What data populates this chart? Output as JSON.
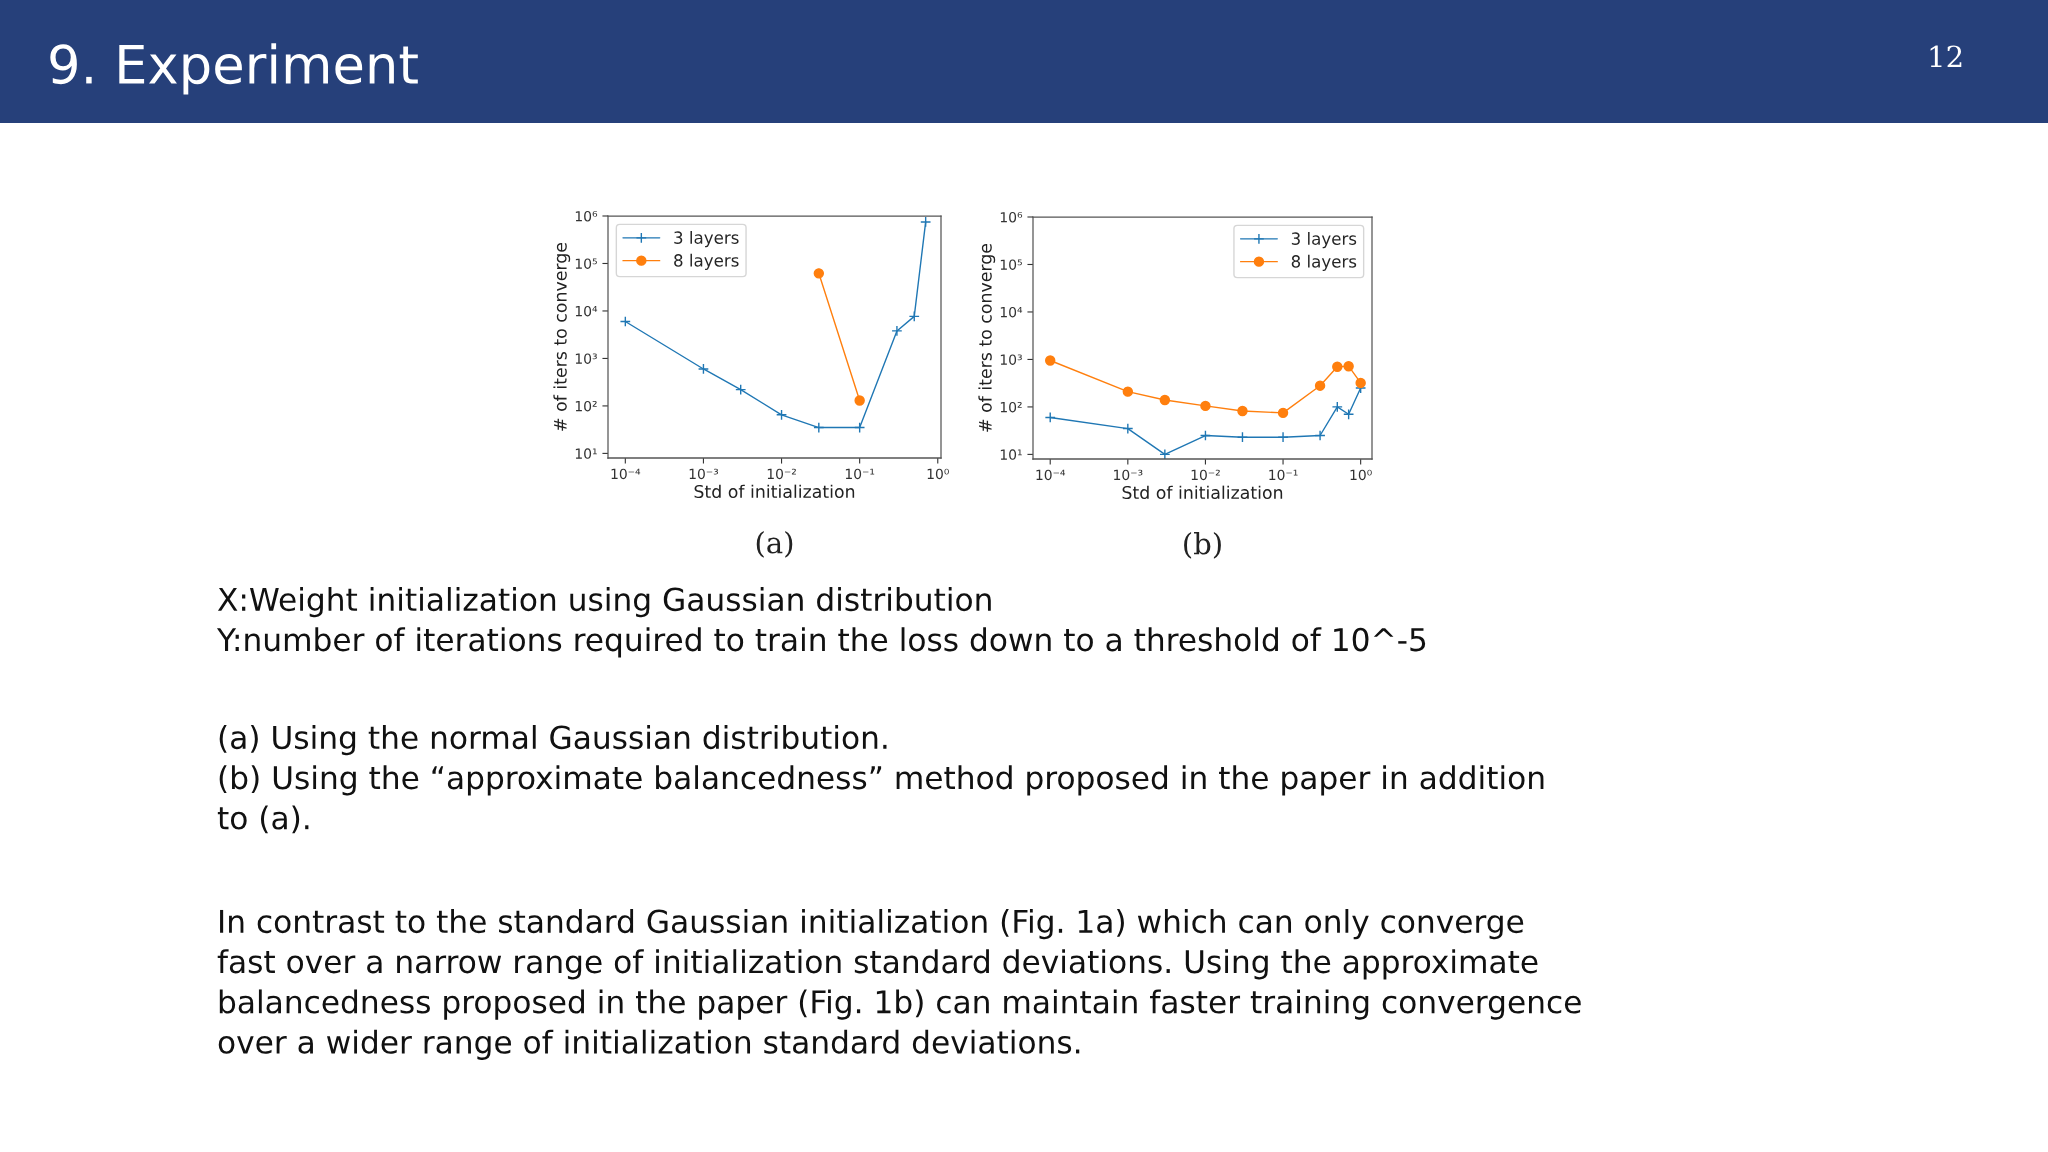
{
  "chart_data": [
    {
      "type": "other",
      "title": "9. Experiment",
      "annotations": [
        "12"
      ]
    },
    {
      "type": "line",
      "title": "(a)",
      "xlabel": "Std of initialization",
      "ylabel": "# of iters to converge",
      "log": "xy",
      "legend": "top left",
      "xlim": [
        6e-05,
        1.1
      ],
      "ylim": [
        8,
        1000000
      ],
      "xticks": [
        {
          "value": 0.0001,
          "label": "10⁻⁴"
        },
        {
          "value": 0.001,
          "label": "10⁻³"
        },
        {
          "value": 0.01,
          "label": "10⁻²"
        },
        {
          "value": 0.1,
          "label": "10⁻¹"
        },
        {
          "value": 1,
          "label": "10⁰"
        }
      ],
      "yticks": [
        {
          "value": 10,
          "label": "10¹"
        },
        {
          "value": 100,
          "label": "10²"
        },
        {
          "value": 1000,
          "label": "10³"
        },
        {
          "value": 10000,
          "label": "10⁴"
        },
        {
          "value": 100000,
          "label": "10⁵"
        },
        {
          "value": 1000000,
          "label": "10⁶"
        }
      ],
      "series": [
        {
          "name": "3 layers",
          "color": "#1f77b4",
          "marker": "cross",
          "line_style": "solid",
          "x": [
            0.0001,
            0.001,
            0.003,
            0.01,
            0.03,
            0.1,
            0.3,
            0.5,
            0.7
          ],
          "values": [
            6000,
            600,
            220,
            65,
            35,
            35,
            3800,
            7700,
            750000
          ]
        },
        {
          "name": "8 layers",
          "color": "#ff7f0e",
          "marker": "circle",
          "line_style": "solid",
          "x": [
            0.03,
            0.1
          ],
          "values": [
            62000,
            130
          ]
        }
      ]
    },
    {
      "type": "line",
      "title": "(b)",
      "xlabel": "Std of initialization",
      "ylabel": "# of iters to converge",
      "log": "xy",
      "legend": "top right",
      "xlim": [
        6e-05,
        1.4
      ],
      "ylim": [
        8,
        1000000
      ],
      "xticks": [
        {
          "value": 0.0001,
          "label": "10⁻⁴"
        },
        {
          "value": 0.001,
          "label": "10⁻³"
        },
        {
          "value": 0.01,
          "label": "10⁻²"
        },
        {
          "value": 0.1,
          "label": "10⁻¹"
        },
        {
          "value": 1,
          "label": "10⁰"
        }
      ],
      "yticks": [
        {
          "value": 10,
          "label": "10¹"
        },
        {
          "value": 100,
          "label": "10²"
        },
        {
          "value": 1000,
          "label": "10³"
        },
        {
          "value": 10000,
          "label": "10⁴"
        },
        {
          "value": 100000,
          "label": "10⁵"
        },
        {
          "value": 1000000,
          "label": "10⁶"
        }
      ],
      "series": [
        {
          "name": "3 layers",
          "color": "#1f77b4",
          "marker": "cross",
          "line_style": "solid",
          "x": [
            0.0001,
            0.001,
            0.003,
            0.01,
            0.03,
            0.1,
            0.3,
            0.5,
            0.7,
            1.0
          ],
          "values": [
            60,
            35,
            10,
            25,
            23,
            23,
            25,
            100,
            70,
            250
          ]
        },
        {
          "name": "8 layers",
          "color": "#ff7f0e",
          "marker": "circle",
          "line_style": "solid",
          "x": [
            0.0001,
            0.001,
            0.003,
            0.01,
            0.03,
            0.1,
            0.3,
            0.5,
            0.7,
            1.0
          ],
          "values": [
            950,
            210,
            140,
            105,
            82,
            75,
            280,
            700,
            720,
            320
          ]
        }
      ]
    },
    {
      "type": "other",
      "annotations": [
        "X:Weight initialization using Gaussian distribution\nY:number of iterations required to train the loss down to a threshold of 10^-5",
        "(a) Using the normal Gaussian distribution.\n(b) Using the “approximate balancedness” method proposed in the paper in addition\nto (a).",
        "In contrast to the standard Gaussian initialization (Fig. 1a) which can only converge\nfast over a narrow range of initialization standard deviations. Using the approximate\nbalancedness proposed in the paper (Fig. 1b) can maintain faster training convergence\nover a wider range of initialization standard deviations."
      ]
    }
  ]
}
